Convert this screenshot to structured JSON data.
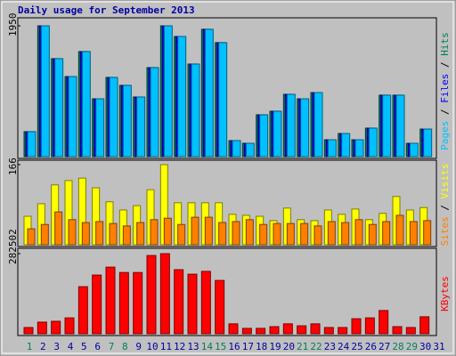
{
  "chart_data": [
    {
      "type": "bar",
      "title": "Daily usage for September 2013",
      "ylim": [
        0,
        1950
      ],
      "yticks": [
        1950
      ],
      "legend_separator": " / ",
      "series": [
        {
          "name": "Pages",
          "color": "#00c0ff",
          "values": [
            372,
            1950,
            1460,
            1194,
            1566,
            862,
            1181,
            1062,
            889,
            1327,
            1950,
            1791,
            1380,
            1898,
            1699,
            239,
            199,
            624,
            677,
            929,
            862,
            955,
            252,
            345,
            252,
            425,
            916,
            916,
            199,
            411,
            null
          ]
        },
        {
          "name": "Files",
          "color": "#0000ff",
          "values": [
            372,
            1950,
            1460,
            1194,
            1566,
            862,
            1181,
            1062,
            889,
            1327,
            1950,
            1791,
            1380,
            1898,
            1699,
            239,
            199,
            624,
            677,
            929,
            862,
            955,
            252,
            345,
            252,
            425,
            916,
            916,
            199,
            411,
            null
          ]
        },
        {
          "name": "Hits",
          "color": "#00805c",
          "values": [
            372,
            1950,
            1460,
            1194,
            1566,
            862,
            1181,
            1062,
            889,
            1327,
            1950,
            1791,
            1380,
            1898,
            1699,
            239,
            199,
            624,
            677,
            929,
            862,
            955,
            252,
            345,
            252,
            425,
            916,
            916,
            199,
            411,
            null
          ]
        }
      ]
    },
    {
      "type": "bar",
      "ylim": [
        0,
        166
      ],
      "yticks": [
        166
      ],
      "legend_separator": " / ",
      "series": [
        {
          "name": "Sites",
          "color": "#ff8000",
          "values": [
            33,
            42,
            68,
            52,
            46,
            48,
            44,
            39,
            46,
            52,
            55,
            42,
            57,
            57,
            46,
            48,
            52,
            42,
            44,
            44,
            44,
            39,
            48,
            46,
            52,
            42,
            48,
            61,
            48,
            50,
            null
          ]
        },
        {
          "name": "Visits",
          "color": "#ffff00",
          "values": [
            59,
            85,
            124,
            133,
            138,
            118,
            89,
            72,
            81,
            114,
            166,
            87,
            87,
            87,
            87,
            63,
            61,
            59,
            50,
            76,
            52,
            50,
            72,
            63,
            74,
            52,
            65,
            100,
            72,
            77,
            null
          ]
        }
      ]
    },
    {
      "type": "bar",
      "ylim": [
        0,
        282502
      ],
      "yticks": [
        282502
      ],
      "categories": [
        "1",
        "2",
        "3",
        "4",
        "5",
        "6",
        "7",
        "8",
        "9",
        "10",
        "11",
        "12",
        "13",
        "14",
        "15",
        "16",
        "17",
        "18",
        "19",
        "20",
        "21",
        "22",
        "23",
        "24",
        "25",
        "26",
        "27",
        "28",
        "29",
        "30",
        "31"
      ],
      "category_colors": [
        "#00805c",
        "#0000a0",
        "#0000a0",
        "#0000a0",
        "#0000a0",
        "#0000a0",
        "#00805c",
        "#00805c",
        "#0000a0",
        "#0000a0",
        "#0000a0",
        "#0000a0",
        "#0000a0",
        "#00805c",
        "#00805c",
        "#0000a0",
        "#0000a0",
        "#0000a0",
        "#0000a0",
        "#0000a0",
        "#00805c",
        "#00805c",
        "#0000a0",
        "#0000a0",
        "#0000a0",
        "#0000a0",
        "#0000a0",
        "#00805c",
        "#00805c",
        "#0000a0",
        "#0000a0"
      ],
      "series": [
        {
          "name": "KBytes",
          "color": "#ff0000",
          "values": [
            22000,
            41000,
            44000,
            56000,
            166000,
            207000,
            235000,
            216000,
            216000,
            276000,
            282502,
            226000,
            210000,
            220000,
            188000,
            35000,
            19000,
            19000,
            25000,
            35000,
            28000,
            35000,
            22000,
            22000,
            53000,
            56000,
            82000,
            25000,
            22000,
            60000,
            null
          ]
        }
      ]
    }
  ]
}
